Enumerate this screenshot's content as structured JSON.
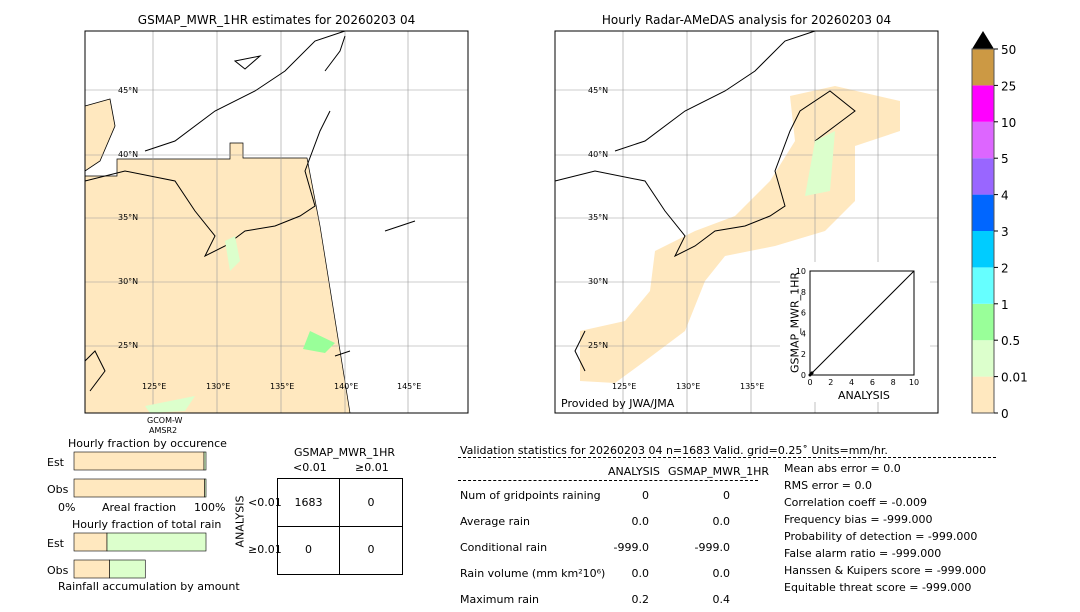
{
  "left_map": {
    "title": "GSMAP_MWR_1HR estimates for 20260203 04",
    "lat_labels": [
      "45°N",
      "40°N",
      "35°N",
      "30°N",
      "25°N"
    ],
    "lon_labels": [
      "125°E",
      "130°E",
      "135°E",
      "140°E",
      "145°E"
    ],
    "sensor_labels": [
      "GCOM-W",
      "AMSR2"
    ]
  },
  "right_map": {
    "title": "Hourly Radar-AMeDAS analysis for 20260203 04",
    "lat_labels": [
      "45°N",
      "40°N",
      "35°N",
      "30°N",
      "25°N"
    ],
    "lon_labels": [
      "125°E",
      "130°E",
      "135°E"
    ],
    "credit": "Provided by JWA/JMA"
  },
  "chart_data": [
    {
      "type": "scatter",
      "xlabel": "ANALYSIS",
      "ylabel": "GSMAP_MWR_1HR",
      "xlim": [
        0,
        10
      ],
      "ylim": [
        0,
        10
      ],
      "ticks": [
        "0",
        "2",
        "4",
        "6",
        "8",
        "10"
      ],
      "points": [
        [
          0,
          0
        ],
        [
          0.1,
          0.1
        ],
        [
          0.2,
          0.2
        ]
      ],
      "diagonal": true
    },
    {
      "type": "bar",
      "title": "Hourly fraction by occurence",
      "categories": [
        "Est",
        "Obs"
      ],
      "series": [
        {
          "values": [
            0.985,
            0.99
          ],
          "color": "#ffe8bf"
        },
        {
          "values": [
            0.015,
            0.01
          ],
          "color": "#dcffcc"
        }
      ],
      "xlabel": "Areal fraction",
      "tick_labels": [
        "0%",
        "100%"
      ]
    },
    {
      "type": "bar",
      "title": "Hourly fraction of total rain",
      "categories": [
        "Est",
        "Obs"
      ],
      "series": [
        {
          "values": [
            0.25,
            0.27
          ],
          "color": "#ffe8bf"
        },
        {
          "values": [
            0.75,
            0.27
          ],
          "color": "#dcffcc"
        }
      ],
      "xlabel": "Rainfall accumulation by amount"
    }
  ],
  "colorbar": {
    "labels": [
      "0",
      "0.01",
      "0.5",
      "1",
      "2",
      "3",
      "4",
      "5",
      "10",
      "25",
      "50"
    ],
    "colors": [
      "#ffe8bf",
      "#dcffcc",
      "#99ff99",
      "#66ffff",
      "#00ccff",
      "#0066ff",
      "#9966ff",
      "#dd66ff",
      "#ff00ff",
      "#cc9944"
    ]
  },
  "contingency": {
    "title": "GSMAP_MWR_1HR",
    "col_labels": [
      "<0.01",
      "≥0.01"
    ],
    "row_axis": "ANALYSIS",
    "row_labels": [
      "<0.01",
      "≥0.01"
    ],
    "cells": [
      [
        "1683",
        "0"
      ],
      [
        "0",
        "0"
      ]
    ]
  },
  "stats": {
    "header": "Validation statistics for 20260203 04  n=1683 Valid. grid=0.25˚ Units=mm/hr.",
    "columns": [
      "ANALYSIS",
      "GSMAP_MWR_1HR"
    ],
    "rows": [
      {
        "label": "Num of gridpoints raining",
        "a": "0",
        "g": "0"
      },
      {
        "label": "Average rain",
        "a": "0.0",
        "g": "0.0"
      },
      {
        "label": "Conditional rain",
        "a": "-999.0",
        "g": "-999.0"
      },
      {
        "label": "Rain volume (mm km²10⁶)",
        "a": "0.0",
        "g": "0.0"
      },
      {
        "label": "Maximum rain",
        "a": "0.2",
        "g": "0.4"
      }
    ],
    "scores": [
      "Mean abs error =    0.0",
      "RMS error =    0.0",
      "Correlation coeff = -0.009",
      "Frequency bias = -999.000",
      "Probability of detection = -999.000",
      "False alarm ratio = -999.000",
      "Hanssen & Kuipers score = -999.000",
      "Equitable threat score = -999.000"
    ]
  }
}
